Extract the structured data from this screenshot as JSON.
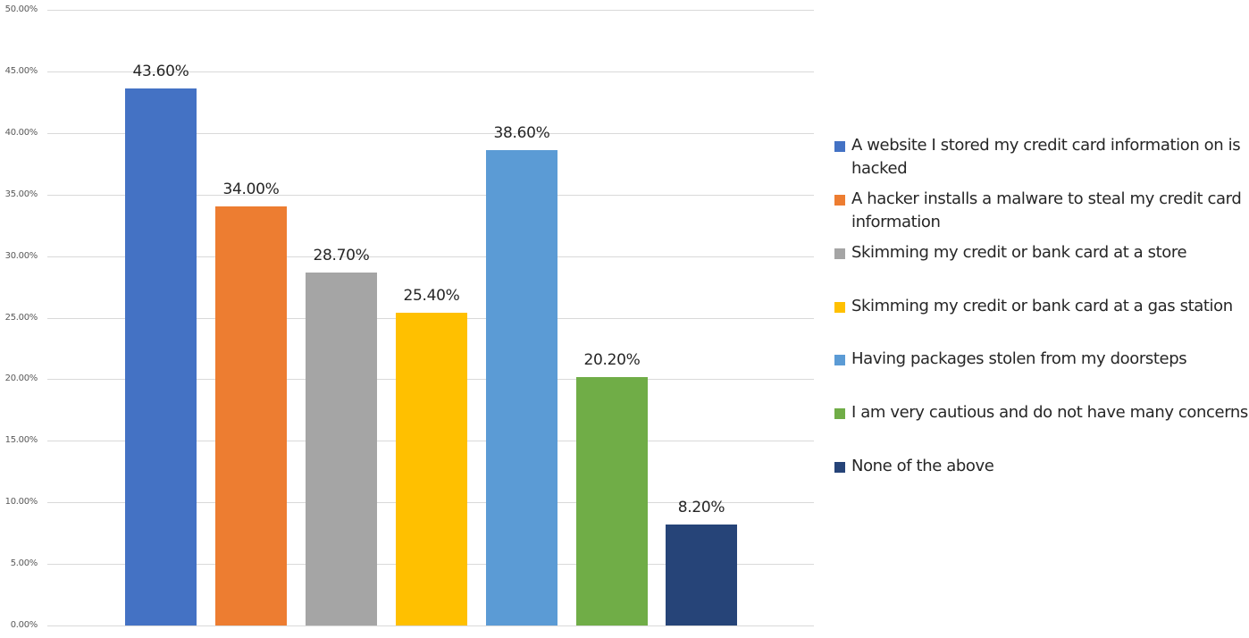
{
  "chart_data": {
    "type": "bar",
    "title": "",
    "xlabel": "",
    "ylabel": "",
    "ylim": [
      0,
      50
    ],
    "grid": true,
    "legend_position": "right",
    "y_ticks": [
      "0.00%",
      "5.00%",
      "10.00%",
      "15.00%",
      "20.00%",
      "25.00%",
      "30.00%",
      "35.00%",
      "40.00%",
      "45.00%",
      "50.00%"
    ],
    "categories": [
      "A website I stored my credit card information on is hacked",
      "A hacker installs a malware to steal my credit card information",
      "Skimming my credit or bank card at a store",
      "Skimming my credit or bank card at a gas station",
      "Having packages stolen from my doorsteps",
      "I am very cautious and do not have many concerns",
      "None of the above"
    ],
    "values": [
      43.6,
      34.0,
      28.7,
      25.4,
      38.6,
      20.2,
      8.2
    ],
    "data_labels": [
      "43.60%",
      "34.00%",
      "28.70%",
      "25.40%",
      "38.60%",
      "20.20%",
      "8.20%"
    ],
    "colors": [
      "#4472c4",
      "#ed7d31",
      "#a5a5a5",
      "#ffc000",
      "#5b9bd5",
      "#70ad47",
      "#264478"
    ]
  },
  "axis": {
    "ticks": [
      "0.00%",
      "5.00%",
      "10.00%",
      "15.00%",
      "20.00%",
      "25.00%",
      "30.00%",
      "35.00%",
      "40.00%",
      "45.00%",
      "50.00%"
    ]
  },
  "bars": [
    {
      "label": "43.60%",
      "value": 43.6,
      "color": "#4472c4"
    },
    {
      "label": "34.00%",
      "value": 34.0,
      "color": "#ed7d31"
    },
    {
      "label": "28.70%",
      "value": 28.7,
      "color": "#a5a5a5"
    },
    {
      "label": "25.40%",
      "value": 25.4,
      "color": "#ffc000"
    },
    {
      "label": "38.60%",
      "value": 38.6,
      "color": "#5b9bd5"
    },
    {
      "label": "20.20%",
      "value": 20.2,
      "color": "#70ad47"
    },
    {
      "label": "8.20%",
      "value": 8.2,
      "color": "#264478"
    }
  ],
  "legend": {
    "items": [
      {
        "label": "A website I stored my credit card information on is hacked",
        "color": "#4472c4"
      },
      {
        "label": "A hacker installs a malware to steal my credit card information",
        "color": "#ed7d31"
      },
      {
        "label": "Skimming my credit or bank card at a store",
        "color": "#a5a5a5"
      },
      {
        "label": "Skimming my credit or bank card at a gas station",
        "color": "#ffc000"
      },
      {
        "label": "Having packages stolen from my doorsteps",
        "color": "#5b9bd5"
      },
      {
        "label": "I am very cautious and do not have many concerns",
        "color": "#70ad47"
      },
      {
        "label": "None of the above",
        "color": "#264478"
      }
    ]
  }
}
